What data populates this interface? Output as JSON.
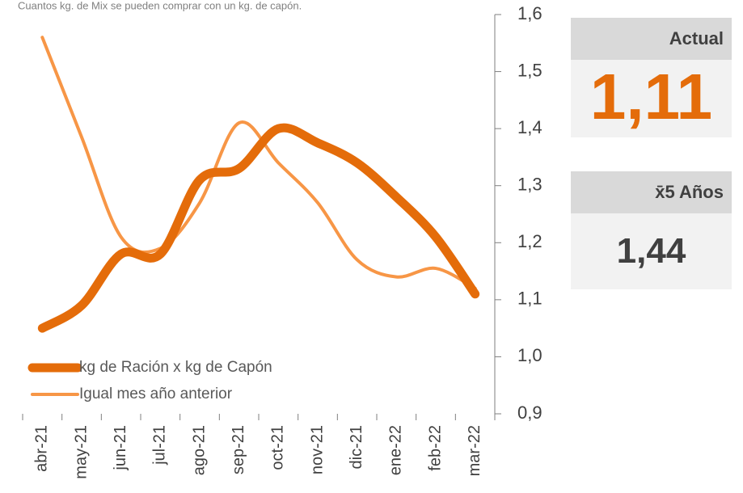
{
  "chart_data": {
    "type": "line",
    "subtitle": "Cuantos kg. de Mix se pueden comprar con un kg. de capón.",
    "categories": [
      "abr-21",
      "may-21",
      "jun-21",
      "jul-21",
      "ago-21",
      "sep-21",
      "oct-21",
      "nov-21",
      "dic-21",
      "ene-22",
      "feb-22",
      "mar-22"
    ],
    "series": [
      {
        "name": "kg de Ración x kg de Capón",
        "color": "#e46c0a",
        "width": 11,
        "values": [
          1.05,
          1.09,
          1.18,
          1.18,
          1.31,
          1.33,
          1.4,
          1.375,
          1.34,
          1.28,
          1.21,
          1.11
        ]
      },
      {
        "name": "Igual mes año anterior",
        "color": "#f79646",
        "width": 4,
        "values": [
          1.56,
          1.385,
          1.21,
          1.19,
          1.27,
          1.41,
          1.34,
          1.27,
          1.17,
          1.14,
          1.155,
          1.12
        ]
      }
    ],
    "ylim": [
      0.9,
      1.6
    ],
    "yticks": [
      {
        "value": 0.9,
        "label": "0,9"
      },
      {
        "value": 1.0,
        "label": "1,0"
      },
      {
        "value": 1.1,
        "label": "1,1"
      },
      {
        "value": 1.2,
        "label": "1,2"
      },
      {
        "value": 1.3,
        "label": "1,3"
      },
      {
        "value": 1.4,
        "label": "1,4"
      },
      {
        "value": 1.5,
        "label": "1,5"
      },
      {
        "value": 1.6,
        "label": "1,6"
      }
    ],
    "y_axis_side": "right",
    "legend": "lower-left"
  },
  "panels": [
    {
      "title": "Actual",
      "value": "1,11"
    },
    {
      "title": "x̄5 Años",
      "value": "1,44"
    }
  ]
}
